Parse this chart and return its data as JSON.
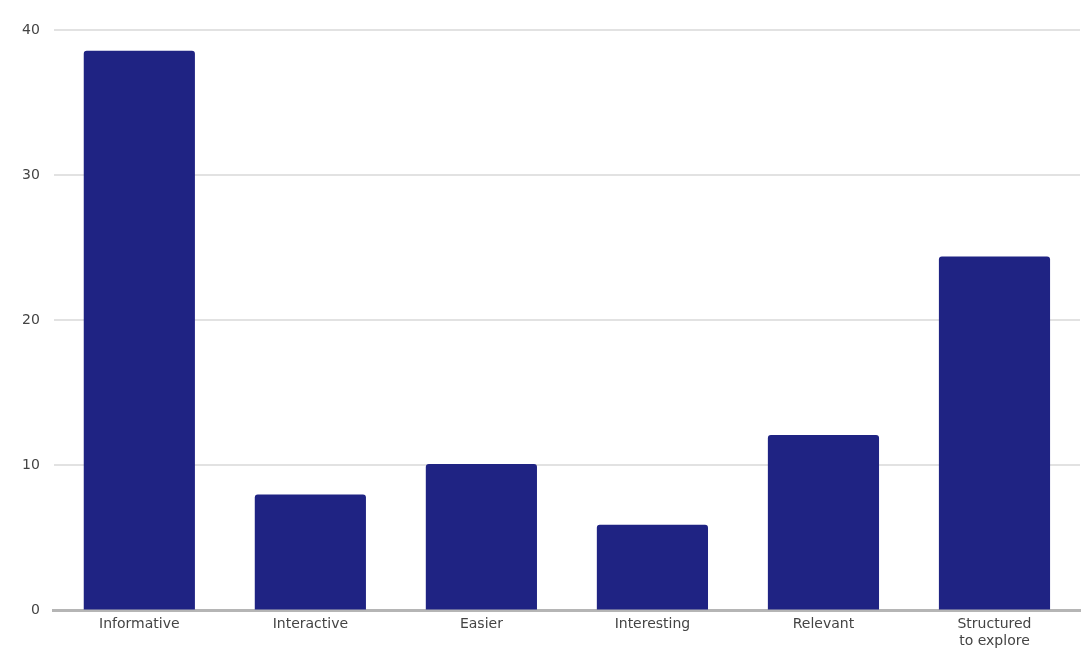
{
  "chart_data": {
    "type": "bar",
    "categories": [
      "Informative",
      "Interactive",
      "Easier",
      "Interesting",
      "Relevant",
      "Structured to explore"
    ],
    "values": [
      38.6,
      8,
      10.1,
      5.9,
      12.1,
      24.4
    ],
    "color": "#1f2383",
    "ylim": [
      0,
      40
    ],
    "yticks": [
      0,
      10,
      20,
      30,
      40
    ],
    "grid": "y"
  }
}
